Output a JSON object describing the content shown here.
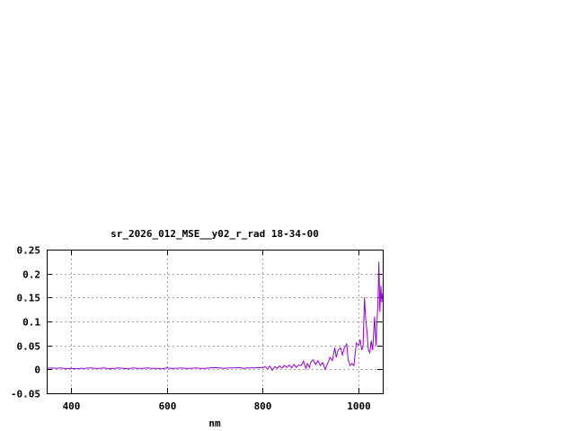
{
  "chart_data": {
    "type": "line",
    "title": "sr_2026_012_MSE__y02_r_rad 18-34-00",
    "xlabel": "nm",
    "ylabel": "",
    "xlim": [
      350,
      1050
    ],
    "ylim": [
      -0.05,
      0.25
    ],
    "xticks": [
      400,
      600,
      800,
      1000
    ],
    "xtick_labels": [
      "400",
      "600",
      "800",
      "1000"
    ],
    "yticks": [
      -0.05,
      0,
      0.05,
      0.1,
      0.15,
      0.2,
      0.25
    ],
    "ytick_labels": [
      "-0.05",
      "0",
      "0.05",
      "0.1",
      "0.15",
      "0.2",
      "0.25"
    ],
    "grid": true,
    "line_color": "#9400d3",
    "series": [
      {
        "x": [
          350,
          360,
          370,
          380,
          390,
          400,
          410,
          420,
          430,
          440,
          450,
          460,
          470,
          480,
          490,
          500,
          510,
          520,
          530,
          540,
          550,
          560,
          570,
          580,
          590,
          600,
          610,
          620,
          630,
          640,
          650,
          660,
          670,
          680,
          690,
          700,
          710,
          720,
          730,
          740,
          750,
          760,
          770,
          780,
          790,
          800,
          805,
          810,
          815,
          820,
          825,
          830,
          835,
          840,
          845,
          850,
          855,
          860,
          865,
          870,
          875,
          880,
          885,
          890,
          893,
          897,
          900,
          905,
          910,
          915,
          920,
          925,
          930,
          935,
          940,
          945,
          950,
          953,
          957,
          962,
          966,
          970,
          975,
          978,
          982,
          986,
          990,
          995,
          1000,
          1003,
          1006,
          1009,
          1012,
          1014,
          1017,
          1020,
          1023,
          1026,
          1029,
          1033,
          1036,
          1038,
          1040,
          1042,
          1044,
          1046,
          1048,
          1050
        ],
        "y": [
          0.002,
          0.003,
          0.002,
          0.003,
          0.001,
          0.002,
          0.001,
          0.002,
          0.002,
          0.003,
          0.002,
          0.002,
          0.003,
          0.001,
          0.002,
          0.003,
          0.002,
          0.001,
          0.003,
          0.002,
          0.002,
          0.003,
          0.002,
          0.002,
          0.001,
          0.003,
          0.002,
          0.002,
          0.003,
          0.002,
          0.002,
          0.003,
          0.002,
          0.002,
          0.003,
          0.004,
          0.003,
          0.002,
          0.003,
          0.003,
          0.004,
          0.002,
          0.003,
          0.003,
          0.004,
          0.003,
          0.006,
          0.001,
          0.007,
          -0.002,
          0.006,
          0.002,
          0.007,
          0.003,
          0.008,
          0.004,
          0.009,
          0.003,
          0.01,
          0.004,
          0.009,
          0.008,
          0.017,
          0.002,
          0.012,
          0.004,
          0.015,
          0.02,
          0.01,
          0.018,
          0.008,
          0.014,
          0.0,
          0.012,
          0.025,
          0.018,
          0.045,
          0.025,
          0.04,
          0.045,
          0.03,
          0.045,
          0.053,
          0.02,
          0.008,
          0.012,
          0.008,
          0.055,
          0.05,
          0.062,
          0.04,
          0.048,
          0.15,
          0.11,
          0.08,
          0.04,
          0.035,
          0.06,
          0.04,
          0.11,
          0.05,
          0.1,
          0.14,
          0.225,
          0.12,
          0.175,
          0.14,
          0.16
        ]
      }
    ]
  }
}
